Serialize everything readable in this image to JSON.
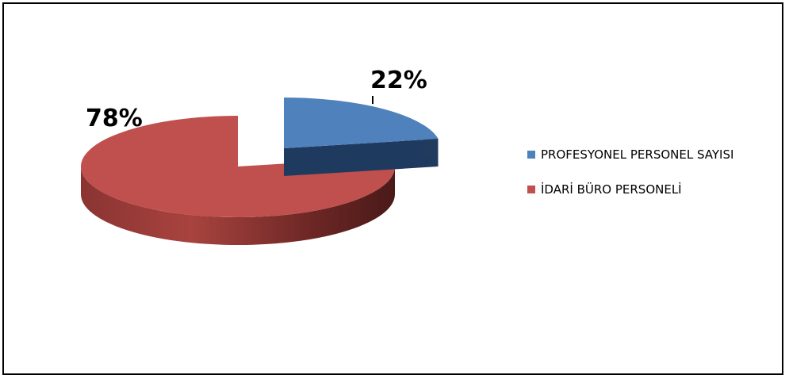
{
  "chart_data": {
    "type": "pie",
    "style": "3d-exploded",
    "slices": [
      {
        "label": "PROFESYONEL PERSONEL SAYISI",
        "value": 22,
        "display": "22%",
        "color": "#4F81BD"
      },
      {
        "label": "İDARİ BÜRO PERSONELİ",
        "value": 78,
        "display": "78%",
        "color": "#C0504D"
      }
    ],
    "legend_position": "right"
  }
}
